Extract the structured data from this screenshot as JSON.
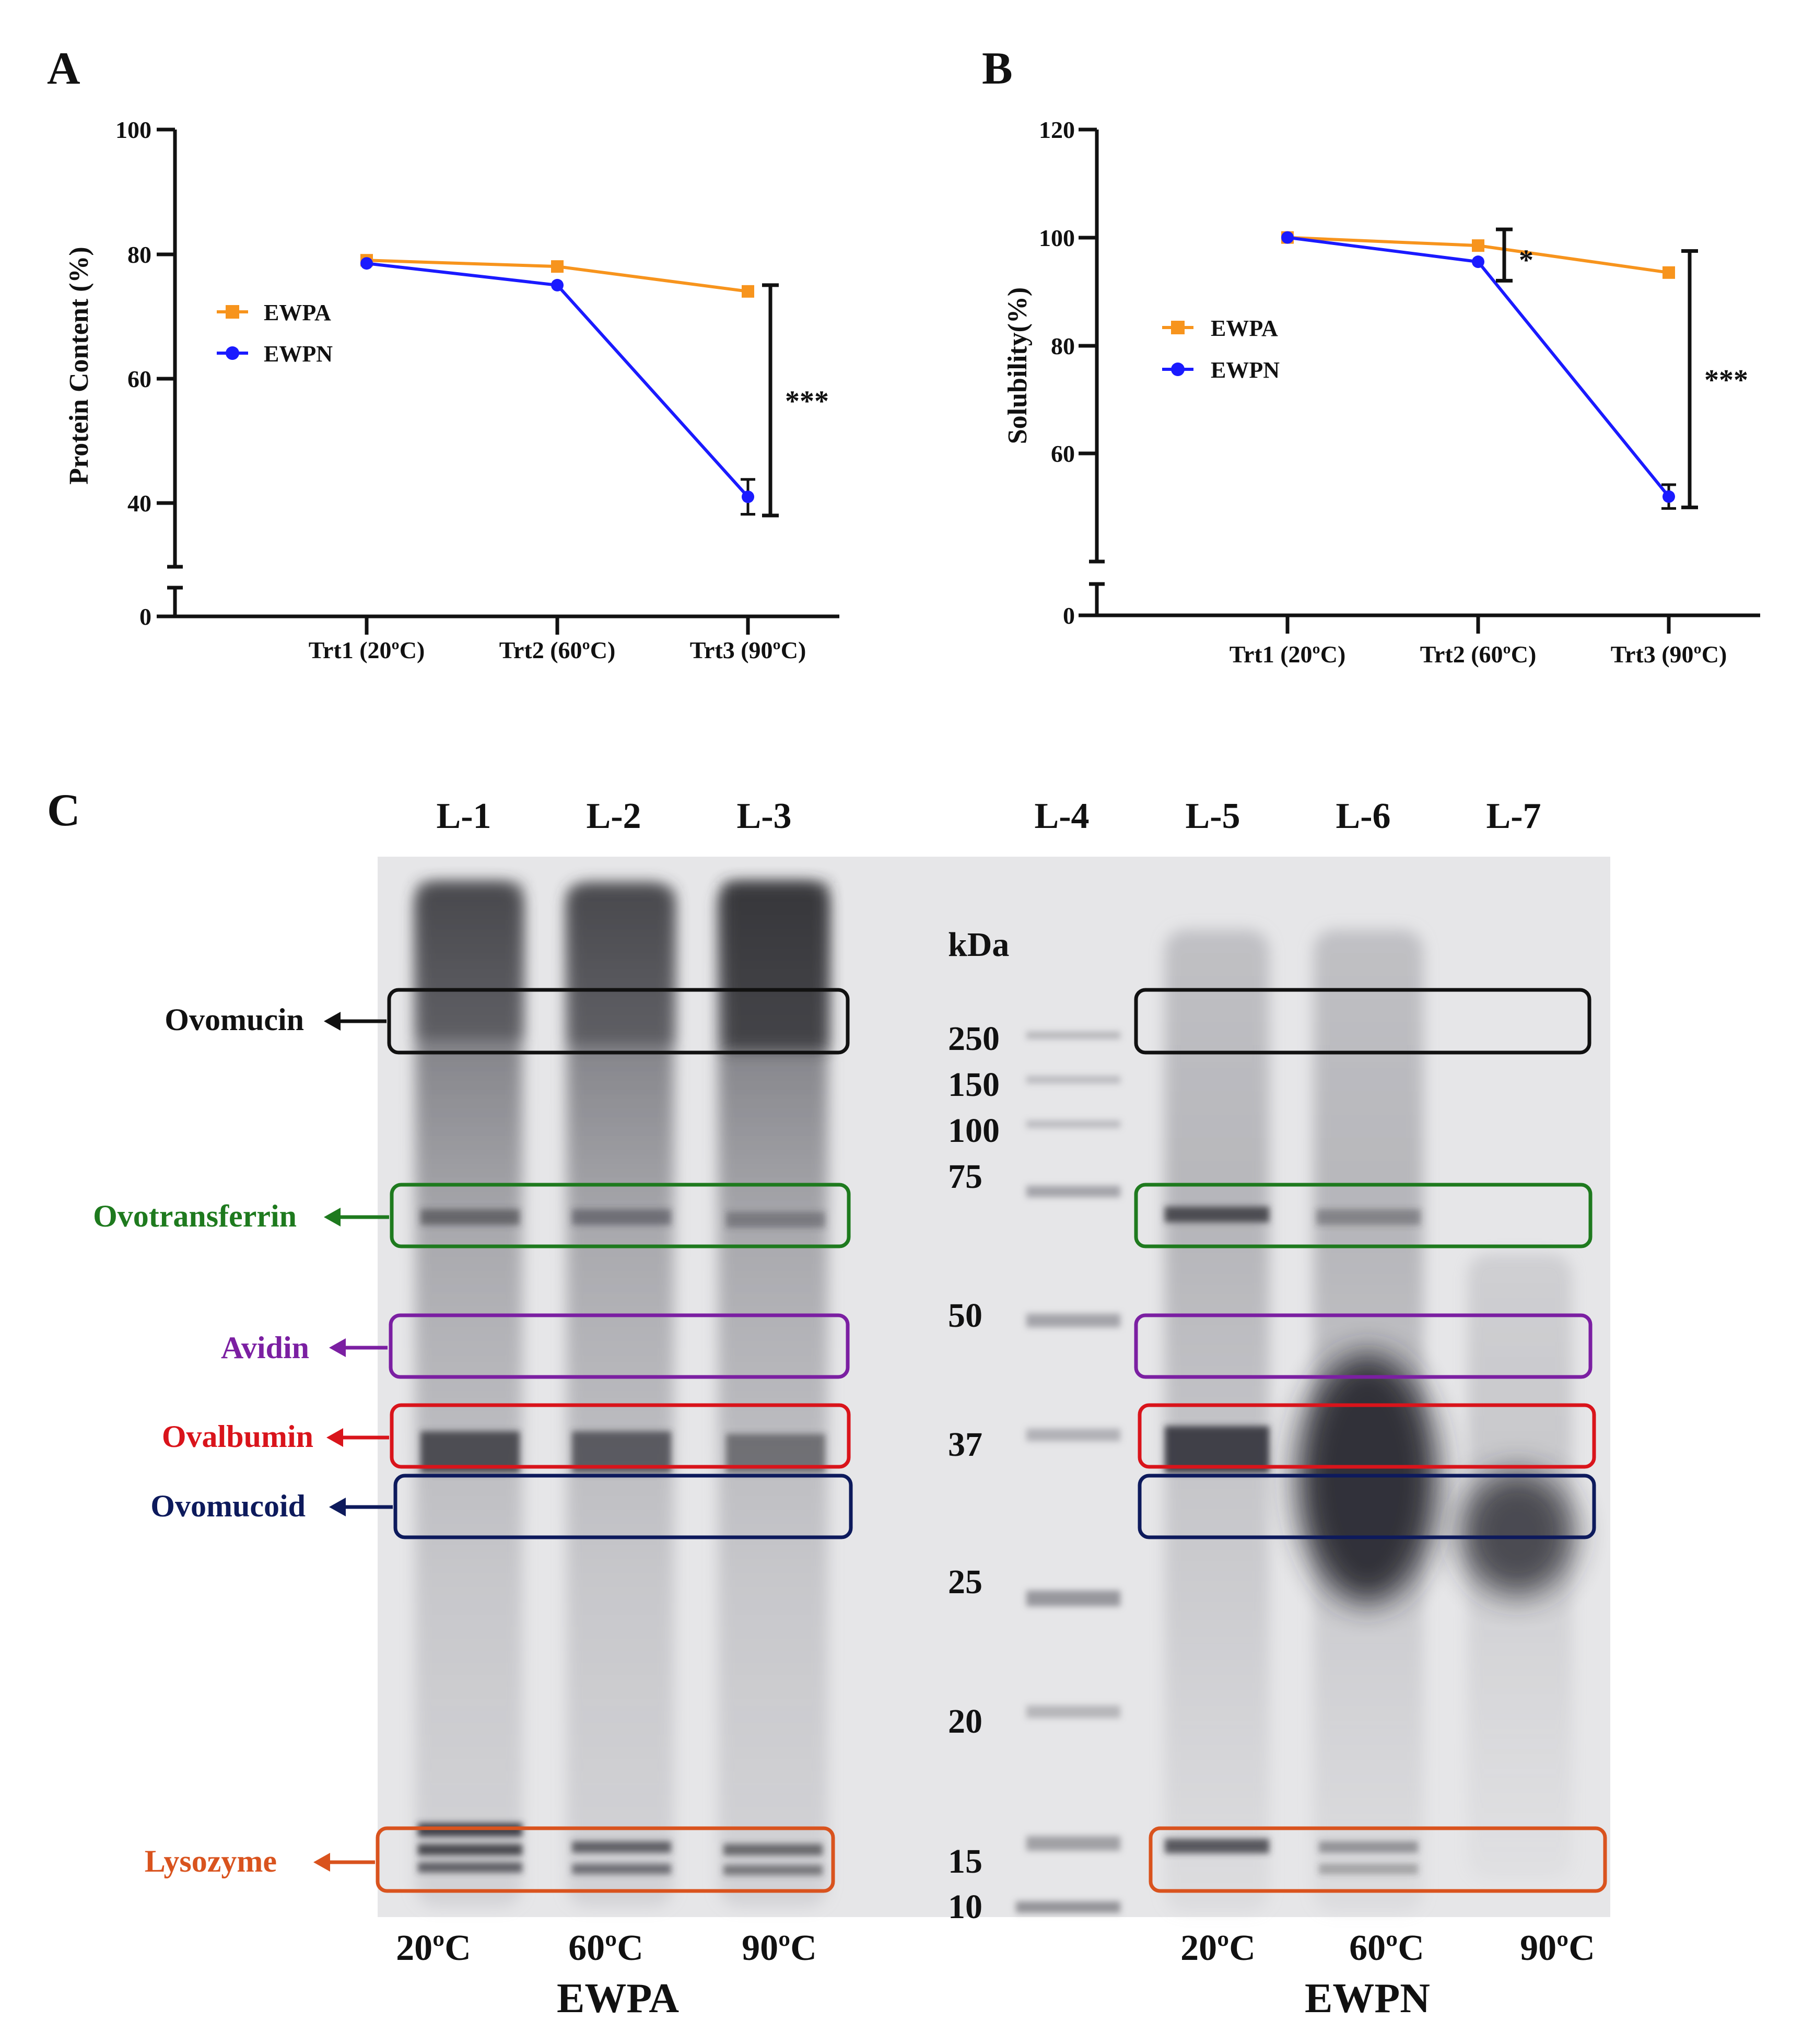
{
  "colors": {
    "EWPA": "#f7941d",
    "EWPN": "#1a1aff",
    "axis": "#111111"
  },
  "panels": {
    "A": "A",
    "B": "B",
    "C": "C"
  },
  "chart_data": [
    {
      "type": "line",
      "panel": "A",
      "ylabel": "Protein Content (%)",
      "xlabel": "",
      "categories": [
        "Trt1 (20ºC)",
        "Trt2 (60ºC)",
        "Trt3 (90ºC)"
      ],
      "y_ticks": [
        0,
        40,
        60,
        80,
        100
      ],
      "ylim": [
        30,
        100
      ],
      "axis_break": true,
      "series": [
        {
          "name": "EWPA",
          "marker": "square",
          "values": [
            79,
            78,
            74
          ]
        },
        {
          "name": "EWPN",
          "marker": "circle",
          "values": [
            78.5,
            75,
            41
          ],
          "errors": [
            0,
            0,
            2.8
          ]
        }
      ],
      "significance": [
        {
          "label": "***",
          "category": "Trt3 (90ºC)",
          "from": 38,
          "to": 75
        }
      ]
    },
    {
      "type": "line",
      "panel": "B",
      "ylabel": "Solubility(%)",
      "xlabel": "",
      "categories": [
        "Trt1 (20ºC)",
        "Trt2 (60ºC)",
        "Trt3 (90ºC)"
      ],
      "y_ticks": [
        0,
        60,
        80,
        100,
        120
      ],
      "ylim": [
        40,
        120
      ],
      "axis_break": true,
      "series": [
        {
          "name": "EWPA",
          "marker": "square",
          "values": [
            100,
            98.5,
            93.5
          ]
        },
        {
          "name": "EWPN",
          "marker": "circle",
          "values": [
            100,
            95.5,
            52
          ],
          "errors": [
            0,
            0,
            2.2
          ]
        }
      ],
      "significance": [
        {
          "label": "*",
          "category": "Trt2 (60ºC)",
          "from": 92,
          "to": 101.5
        },
        {
          "label": "***",
          "category": "Trt3 (90ºC)",
          "from": 50,
          "to": 97.5
        }
      ]
    }
  ],
  "gel": {
    "lanes": [
      "L-1",
      "L-2",
      "L-3",
      "L-4",
      "L-5",
      "L-6",
      "L-7"
    ],
    "kda_label": "kDa",
    "markers": [
      "250",
      "150",
      "100",
      "75",
      "50",
      "37",
      "25",
      "20",
      "15",
      "10"
    ],
    "proteins": [
      {
        "name": "Ovomucin",
        "color": "#111111"
      },
      {
        "name": "Ovotransferrin",
        "color": "#1e7a1e"
      },
      {
        "name": "Avidin",
        "color": "#7b1fa2"
      },
      {
        "name": "Ovalbumin",
        "color": "#d9141b"
      },
      {
        "name": "Ovomucoid",
        "color": "#0d1a5c"
      },
      {
        "name": "Lysozyme",
        "color": "#d9531e"
      }
    ],
    "temps_left": [
      "20ºC",
      "60ºC",
      "90ºC"
    ],
    "temps_right": [
      "20ºC",
      "60ºC",
      "90ºC"
    ],
    "group_left": "EWPA",
    "group_right": "EWPN"
  }
}
